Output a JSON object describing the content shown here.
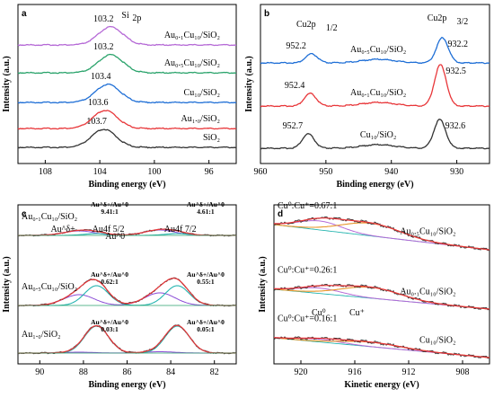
{
  "colors": {
    "black": "#333333",
    "red": "#e8373a",
    "green": "#2aa36b",
    "blue": "#1f6fd6",
    "purple": "#b569d6",
    "violet": "#8a4bd6",
    "teal": "#26b5b0",
    "orange": "#e8952a",
    "bg": "#ffffff"
  },
  "chart_data": [
    {
      "panel": "a",
      "type": "line",
      "xlabel": "Binding energy (eV)",
      "ylabel": "Intensity (a.u.)",
      "xlim": [
        110,
        94
      ],
      "xticks": [
        "108",
        "104",
        "100",
        "96"
      ],
      "xtick_values": [
        108,
        104,
        100,
        96
      ],
      "peak_label": "Si2p",
      "series": [
        {
          "name": "SiO2",
          "label": "SiO₂",
          "peak_be": 103.7,
          "peak_label": "103.7",
          "color": "#333333"
        },
        {
          "name": "Au1.0/SiO2",
          "label": "Au₁.₀/SiO₂",
          "peak_be": 103.6,
          "peak_label": "103.6",
          "color": "#e8373a"
        },
        {
          "name": "Cu10/SiO2",
          "label": "Cu₁₀/SiO₂",
          "peak_be": 103.4,
          "peak_label": "103.4",
          "color": "#1f6fd6"
        },
        {
          "name": "Au0.5Cu10/SiO2",
          "label": "Au₀.₅Cu₁₀/SiO₂",
          "peak_be": 103.2,
          "peak_label": "103.2",
          "color": "#2aa36b"
        },
        {
          "name": "Au0.1Cu10/SiO2",
          "label": "Au₀.₁Cu₁₀/SiO₂",
          "peak_be": 103.2,
          "peak_label": "103.2",
          "color": "#b569d6"
        }
      ]
    },
    {
      "panel": "b",
      "type": "line",
      "xlabel": "Binding energy (eV)",
      "ylabel": "Intensity (a.u.)",
      "xlim": [
        960,
        925
      ],
      "xticks": [
        "960",
        "950",
        "940",
        "930"
      ],
      "xtick_values": [
        960,
        950,
        940,
        930
      ],
      "peak_labels": [
        "Cu2p1/2",
        "Cu2p3/2"
      ],
      "series": [
        {
          "name": "Cu10/SiO2",
          "label": "Cu₁₀/SiO₂",
          "peaks": [
            952.7,
            932.6
          ],
          "peak_text": [
            "952.7",
            "932.6"
          ],
          "color": "#333333"
        },
        {
          "name": "Au0.1Cu10/SiO2",
          "label": "Au₀.₁Cu₁₀/SiO₂",
          "peaks": [
            952.4,
            932.5
          ],
          "peak_text": [
            "952.4",
            "932.5"
          ],
          "color": "#e8373a"
        },
        {
          "name": "Au0.5Cu10/SiO2",
          "label": "Au₀.₅Cu₁₀/SiO₂",
          "peaks": [
            952.2,
            932.2
          ],
          "peak_text": [
            "952.2",
            "932.2"
          ],
          "color": "#1f6fd6"
        }
      ]
    },
    {
      "panel": "c",
      "type": "line",
      "xlabel": "Binding energy (eV)",
      "ylabel": "Intensity (a.u.)",
      "xlim": [
        91,
        81
      ],
      "xticks": [
        "90",
        "88",
        "86",
        "84",
        "82"
      ],
      "xtick_values": [
        90,
        88,
        86,
        84,
        82
      ],
      "component_labels": {
        "au_delta": "Au^δ+",
        "au0": "Au^0",
        "au4f52": "Au4f 5/2",
        "au4f72": "Au4f 7/2"
      },
      "series": [
        {
          "name": "Au1.0/SiO2",
          "label": "Au₁.₀/SiO₂",
          "ratios": [
            {
              "text": "0.03:1",
              "header": "Au^δ+/Au^0"
            },
            {
              "text": "0.05:1",
              "header": "Au^δ+/Au^0"
            }
          ]
        },
        {
          "name": "Au0.5Cu10/SiO2",
          "label": "Au₀.₅Cu₁₀/SiO₂",
          "ratios": [
            {
              "text": "0.62:1",
              "header": "Au^δ+/Au^0"
            },
            {
              "text": "0.55:1",
              "header": "Au^δ+/Au^0"
            }
          ]
        },
        {
          "name": "Au0.1Cu10/SiO2",
          "label": "Au₀.₁Cu₁₀/SiO₂",
          "ratios": [
            {
              "text": "9.41:1",
              "header": "Au^δ+/Au^0"
            },
            {
              "text": "4.61:1",
              "header": "Au^δ+/Au^0"
            }
          ]
        }
      ]
    },
    {
      "panel": "d",
      "type": "line",
      "xlabel": "Kinetic energy (eV)",
      "ylabel": "Intensity (a.u.)",
      "xlim": [
        922,
        906
      ],
      "xticks": [
        "920",
        "916",
        "912",
        "908"
      ],
      "xtick_values": [
        920,
        916,
        912,
        908
      ],
      "component_labels": {
        "cu0": "Cu⁰",
        "cu_plus": "Cu⁺"
      },
      "series": [
        {
          "name": "Cu10/SiO2",
          "label": "Cu₁₀/SiO₂",
          "ratio": "Cu⁰:Cu⁺=0.16:1"
        },
        {
          "name": "Au0.1Cu10/SiO2",
          "label": "Au₀.₁Cu₁₀/SiO₂",
          "ratio": "Cu⁰:Cu⁺=0.26:1"
        },
        {
          "name": "Au0.5Cu10/SiO2",
          "label": "Au₀.₅Cu₁₀/SiO₂",
          "ratio": "Cu⁰:Cu⁺=0.67:1"
        }
      ]
    }
  ]
}
